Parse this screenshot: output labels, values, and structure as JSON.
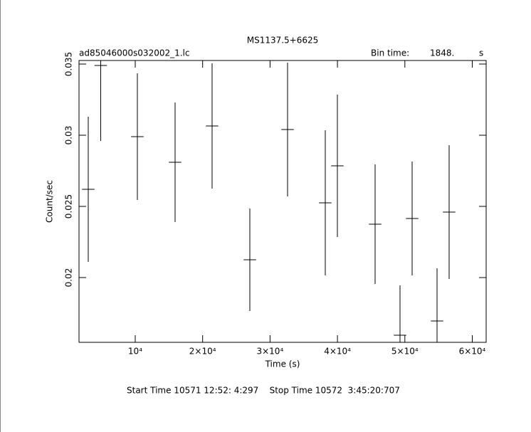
{
  "chart_data": {
    "type": "errorbar",
    "title": "MS1137.5+6625",
    "subtitle": "ad85046000s032002_1.lc",
    "bin_time_title": "Bin time:",
    "bin_time": {
      "value": 1848,
      "label": "1848."
    },
    "bin_time_unit": "s",
    "xlabel": "Time (s)",
    "ylabel": "Count/sec",
    "footer": "Start Time 10571 12:52: 4:297    Stop Time 10572  3:45:20:707",
    "color": "#000000",
    "x": [
      3031,
      4879,
      10317,
      15913,
      21404,
      27001,
      32598,
      38194,
      39989,
      45586,
      49282,
      51077,
      54773,
      56568
    ],
    "values": [
      0.0262,
      0.0349,
      0.0299,
      0.0281,
      0.03065,
      0.02125,
      0.0304,
      0.02525,
      0.02785,
      0.02375,
      0.01595,
      0.02415,
      0.01695,
      0.0246
    ],
    "errors": [
      0.0051,
      0.0053,
      0.00445,
      0.0042,
      0.0044,
      0.0036,
      0.0047,
      0.0051,
      0.005,
      0.0042,
      0.0035,
      0.004,
      0.0037,
      0.0047
    ],
    "xlim": [
      1660,
      62060
    ],
    "ylim": [
      0.01545,
      0.03525
    ],
    "xticks": [
      {
        "value": 10000,
        "label": "10⁴"
      },
      {
        "value": 20000,
        "label": "2×10⁴"
      },
      {
        "value": 30000,
        "label": "3×10⁴"
      },
      {
        "value": 40000,
        "label": "4×10⁴"
      },
      {
        "value": 50000,
        "label": "5×10⁴"
      },
      {
        "value": 60000,
        "label": "6×10⁴"
      }
    ],
    "yticks": [
      0.02,
      0.025,
      0.03,
      0.035
    ]
  }
}
